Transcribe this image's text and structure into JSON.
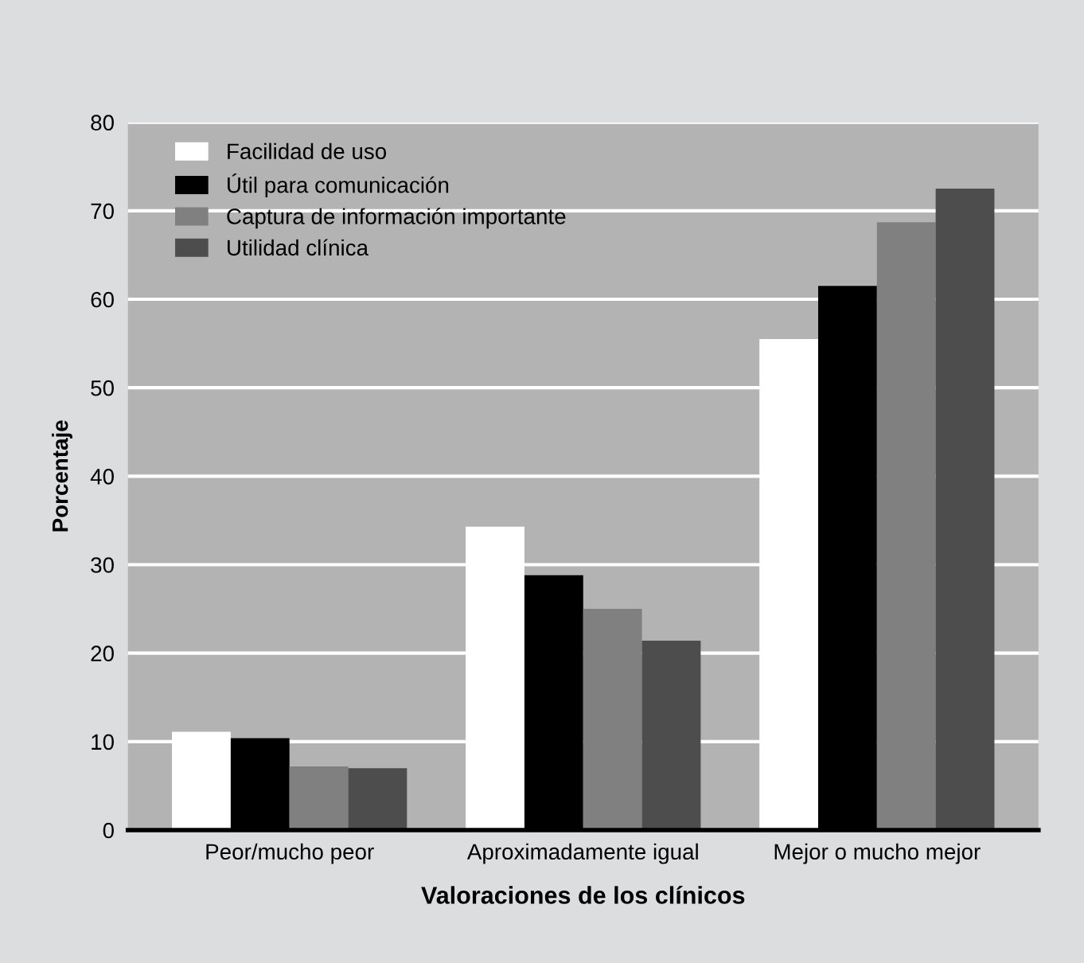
{
  "chart_data": {
    "type": "bar",
    "xlabel": "Valoraciones de los clínicos",
    "ylabel": "Porcentaje",
    "categories": [
      "Peor/mucho peor",
      "Aproximadamente igual",
      "Mejor o mucho mejor"
    ],
    "series": [
      {
        "name": "Facilidad de uso",
        "color": "#ffffff",
        "values": [
          11.1,
          34.3,
          55.5
        ]
      },
      {
        "name": "Útil para comunicación",
        "color": "#000000",
        "values": [
          10.4,
          28.8,
          61.5
        ]
      },
      {
        "name": "Captura de información importante",
        "color": "#808080",
        "values": [
          7.2,
          25.0,
          68.7
        ]
      },
      {
        "name": "Utilidad clínica",
        "color": "#4d4d4d",
        "values": [
          7.0,
          21.4,
          72.5
        ]
      }
    ],
    "ylim": [
      0,
      80
    ],
    "yticks": [
      0,
      10,
      20,
      30,
      40,
      50,
      60,
      70,
      80
    ],
    "grid": "y",
    "legend": "top left"
  }
}
